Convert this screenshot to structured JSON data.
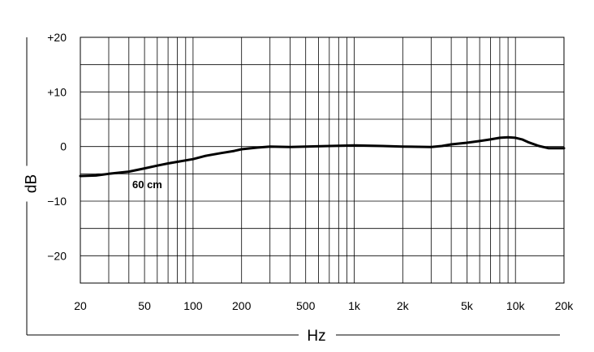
{
  "chart_data": {
    "type": "line",
    "title": "",
    "xlabel": "Hz",
    "ylabel": "dB",
    "x_scale": "log",
    "xlim": [
      20,
      20000
    ],
    "ylim": [
      -25,
      20
    ],
    "grid": true,
    "x_ticks": [
      {
        "value": 20,
        "label": "20"
      },
      {
        "value": 50,
        "label": "50"
      },
      {
        "value": 100,
        "label": "100"
      },
      {
        "value": 200,
        "label": "200"
      },
      {
        "value": 500,
        "label": "500"
      },
      {
        "value": 1000,
        "label": "1k"
      },
      {
        "value": 2000,
        "label": "2k"
      },
      {
        "value": 5000,
        "label": "5k"
      },
      {
        "value": 10000,
        "label": "10k"
      },
      {
        "value": 20000,
        "label": "20k"
      }
    ],
    "x_grid": [
      20,
      30,
      40,
      50,
      60,
      70,
      80,
      90,
      100,
      200,
      300,
      400,
      500,
      600,
      700,
      800,
      900,
      1000,
      2000,
      3000,
      4000,
      5000,
      6000,
      7000,
      8000,
      9000,
      10000,
      20000
    ],
    "y_ticks": [
      {
        "value": 20,
        "label": "+20"
      },
      {
        "value": 10,
        "label": "+10"
      },
      {
        "value": 0,
        "label": "0"
      },
      {
        "value": -10,
        "label": "−10"
      },
      {
        "value": -20,
        "label": "−20"
      }
    ],
    "y_grid": [
      20,
      15,
      10,
      5,
      0,
      -5,
      -10,
      -15,
      -20,
      -25
    ],
    "annotations": [
      {
        "text": "60 cm",
        "x": 42,
        "y": -7
      }
    ],
    "series": [
      {
        "x": [
          20,
          25,
          30,
          40,
          50,
          60,
          70,
          80,
          100,
          120,
          150,
          180,
          200,
          250,
          300,
          400,
          500,
          700,
          1000,
          1500,
          2000,
          3000,
          3500,
          4000,
          5000,
          6000,
          7000,
          8000,
          9000,
          10000,
          11000,
          12000,
          14000,
          16000,
          20000
        ],
        "y": [
          -5.4,
          -5.3,
          -5.0,
          -4.6,
          -4.0,
          -3.5,
          -3.1,
          -2.8,
          -2.3,
          -1.7,
          -1.2,
          -0.8,
          -0.5,
          -0.2,
          0.0,
          -0.1,
          0.0,
          0.1,
          0.2,
          0.1,
          0.0,
          -0.1,
          0.1,
          0.4,
          0.7,
          1.0,
          1.3,
          1.6,
          1.7,
          1.6,
          1.3,
          0.8,
          0.1,
          -0.3,
          -0.3
        ]
      }
    ]
  }
}
